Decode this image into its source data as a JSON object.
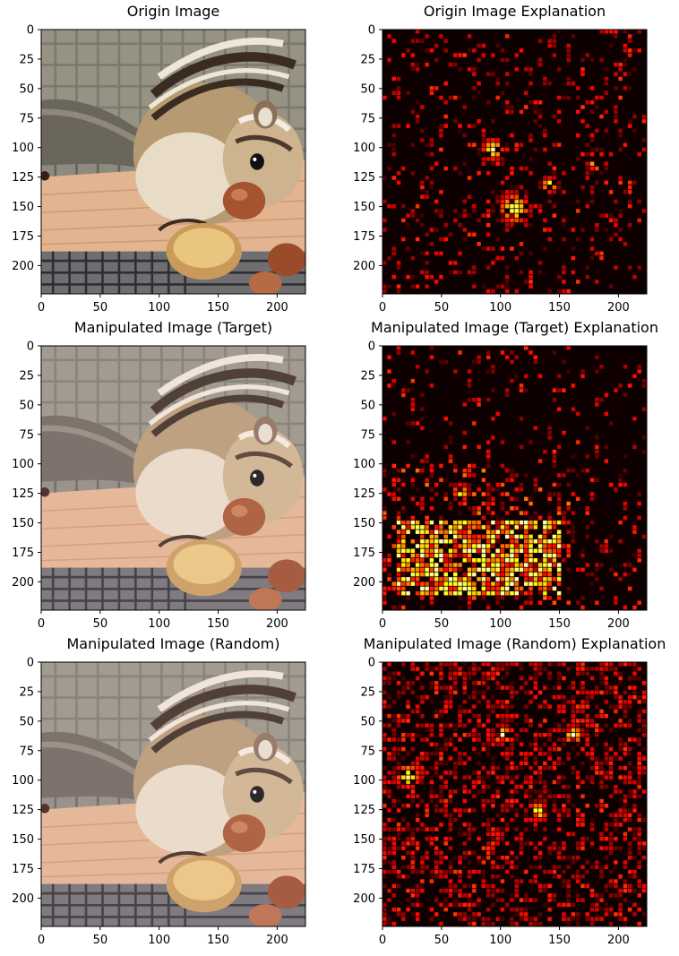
{
  "figure": {
    "grid_rows": 3,
    "grid_cols": 2
  },
  "chart_data": [
    {
      "type": "image",
      "title": "Origin Image",
      "content": "photo",
      "xlim": [
        0,
        224
      ],
      "ylim": [
        224,
        0
      ],
      "xticks": [
        0,
        50,
        100,
        150,
        200
      ],
      "yticks": [
        0,
        25,
        50,
        75,
        100,
        125,
        150,
        175,
        200
      ],
      "heat": null
    },
    {
      "type": "heatmap",
      "title": "Origin Image Explanation",
      "content": "heatmap",
      "colormap": "hot",
      "xlim": [
        0,
        224
      ],
      "ylim": [
        224,
        0
      ],
      "xticks": [
        0,
        50,
        100,
        150,
        200
      ],
      "yticks": [
        0,
        25,
        50,
        75,
        100,
        125,
        150,
        175,
        200
      ],
      "heat": {
        "density": 0.22,
        "hotspots": [
          [
            92,
            100,
            14
          ],
          [
            180,
            110,
            12
          ],
          [
            140,
            130,
            10
          ],
          [
            110,
            150,
            20
          ]
        ]
      }
    },
    {
      "type": "image",
      "title": "Manipulated Image (Target)",
      "content": "photo",
      "xlim": [
        0,
        224
      ],
      "ylim": [
        224,
        0
      ],
      "xticks": [
        0,
        50,
        100,
        150,
        200
      ],
      "yticks": [
        0,
        25,
        50,
        75,
        100,
        125,
        150,
        175,
        200
      ],
      "heat": null
    },
    {
      "type": "heatmap",
      "title": "Manipulated Image (Target) Explanation",
      "content": "heatmap",
      "colormap": "hot",
      "xlim": [
        0,
        224
      ],
      "ylim": [
        224,
        0
      ],
      "xticks": [
        0,
        50,
        100,
        150,
        200
      ],
      "yticks": [
        0,
        25,
        50,
        75,
        100,
        125,
        150,
        175,
        200
      ],
      "heat": {
        "density": 0.18,
        "target_region": [
          10,
          145,
          150,
          210
        ],
        "hotspots": [
          [
            65,
            122,
            10
          ],
          [
            95,
            185,
            14
          ]
        ]
      }
    },
    {
      "type": "image",
      "title": "Manipulated Image (Random)",
      "content": "photo",
      "xlim": [
        0,
        224
      ],
      "ylim": [
        224,
        0
      ],
      "xticks": [
        0,
        50,
        100,
        150,
        200
      ],
      "yticks": [
        0,
        25,
        50,
        75,
        100,
        125,
        150,
        175,
        200
      ],
      "heat": null
    },
    {
      "type": "heatmap",
      "title": "Manipulated Image (Random) Explanation",
      "content": "heatmap",
      "colormap": "hot",
      "xlim": [
        0,
        224
      ],
      "ylim": [
        224,
        0
      ],
      "xticks": [
        0,
        50,
        100,
        150,
        200
      ],
      "yticks": [
        0,
        25,
        50,
        75,
        100,
        125,
        150,
        175,
        200
      ],
      "heat": {
        "density": 0.55,
        "hotspots": [
          [
            20,
            95,
            16
          ],
          [
            130,
            125,
            12
          ],
          [
            160,
            60,
            12
          ],
          [
            100,
            60,
            12
          ]
        ]
      }
    }
  ]
}
